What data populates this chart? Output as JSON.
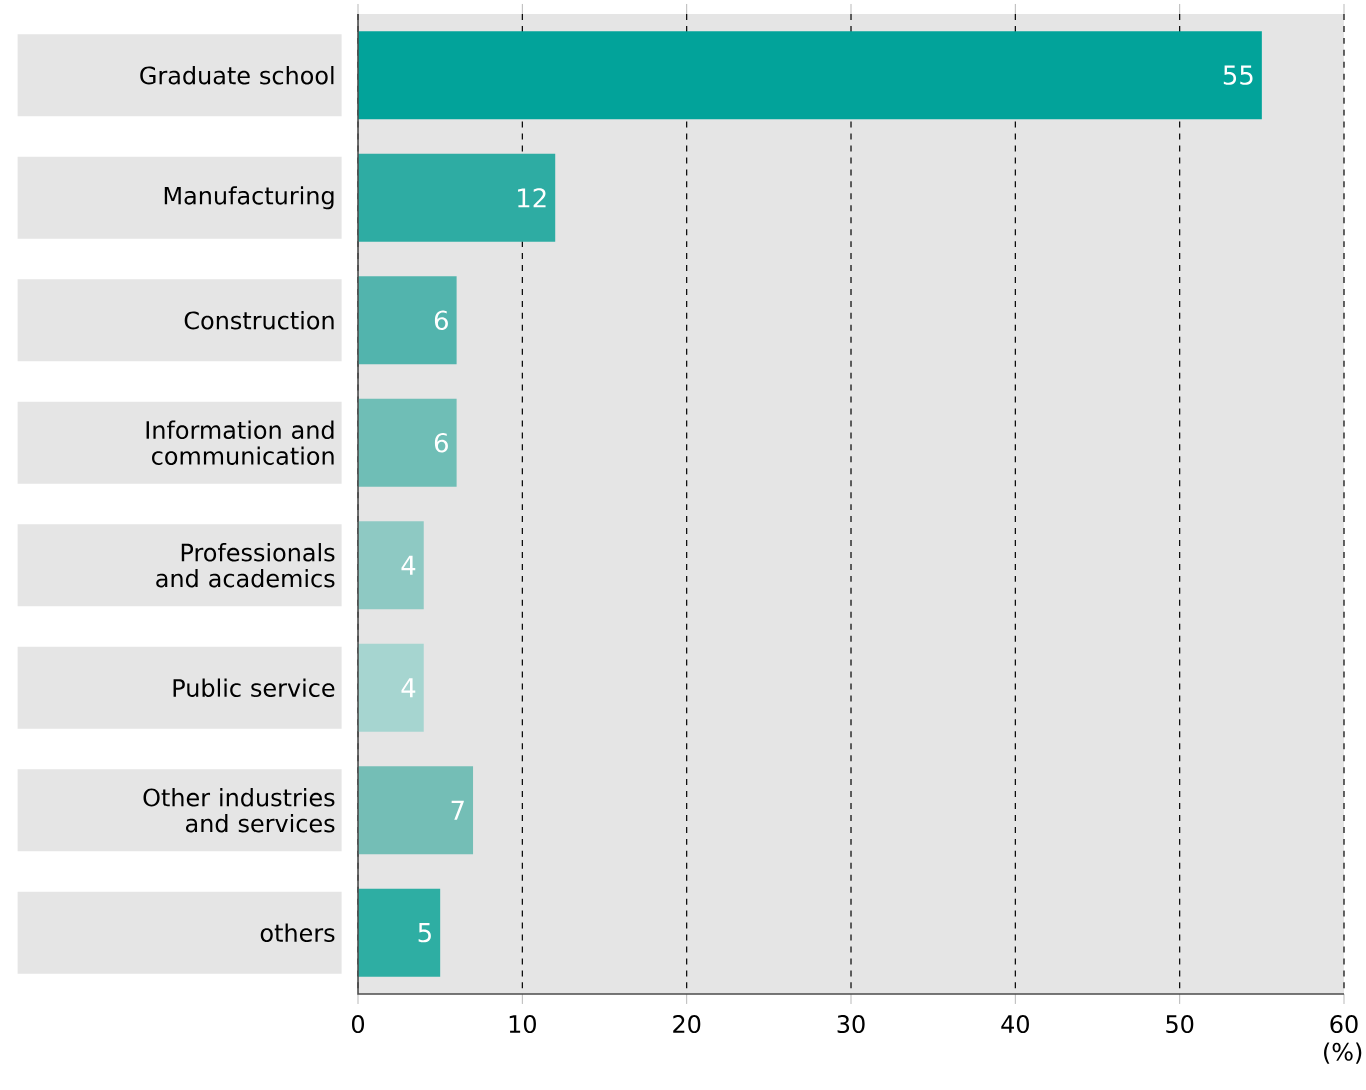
{
  "chart_data": {
    "type": "bar",
    "orientation": "horizontal",
    "xlabel": "(%)",
    "categories": [
      "Graduate school",
      "Manufacturing",
      "Construction",
      "Information and communication",
      "Professionals and academics",
      "Public service",
      "Other industries and services",
      "others"
    ],
    "values": [
      55,
      12,
      6,
      6,
      4,
      4,
      7,
      5
    ],
    "colors": [
      "#02a39a",
      "#2eaca3",
      "#52b4ad",
      "#6fbeb6",
      "#8ec9c3",
      "#a6d5d0",
      "#74beb6",
      "#2eaea3"
    ],
    "xlim": [
      0,
      60
    ],
    "xticks": [
      0,
      10,
      20,
      30,
      40,
      50,
      60
    ],
    "grid": "x",
    "data_labels": true
  }
}
